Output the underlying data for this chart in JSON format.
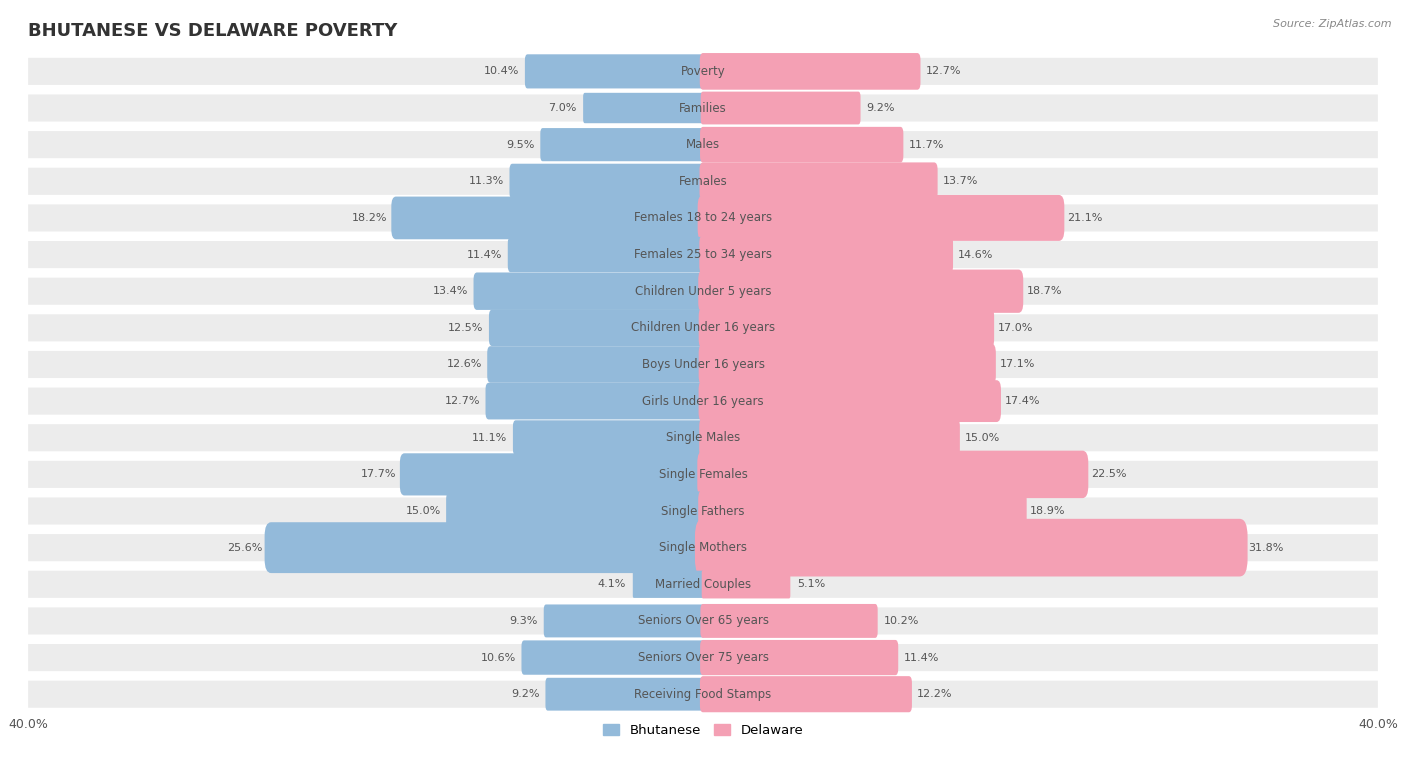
{
  "title": "BHUTANESE VS DELAWARE POVERTY",
  "source": "Source: ZipAtlas.com",
  "categories": [
    "Poverty",
    "Families",
    "Males",
    "Females",
    "Females 18 to 24 years",
    "Females 25 to 34 years",
    "Children Under 5 years",
    "Children Under 16 years",
    "Boys Under 16 years",
    "Girls Under 16 years",
    "Single Males",
    "Single Females",
    "Single Fathers",
    "Single Mothers",
    "Married Couples",
    "Seniors Over 65 years",
    "Seniors Over 75 years",
    "Receiving Food Stamps"
  ],
  "bhutanese": [
    10.4,
    7.0,
    9.5,
    11.3,
    18.2,
    11.4,
    13.4,
    12.5,
    12.6,
    12.7,
    11.1,
    17.7,
    15.0,
    25.6,
    4.1,
    9.3,
    10.6,
    9.2
  ],
  "delaware": [
    12.7,
    9.2,
    11.7,
    13.7,
    21.1,
    14.6,
    18.7,
    17.0,
    17.1,
    17.4,
    15.0,
    22.5,
    18.9,
    31.8,
    5.1,
    10.2,
    11.4,
    12.2
  ],
  "bhutanese_color": "#93bada",
  "delaware_color": "#f4a0b4",
  "bg_row_color": "#ececec",
  "bg_separator_color": "#ffffff",
  "axis_max": 40.0,
  "bar_height": 0.62,
  "title_fontsize": 13,
  "label_fontsize": 8.5,
  "value_fontsize": 8.0,
  "legend_fontsize": 9.5
}
